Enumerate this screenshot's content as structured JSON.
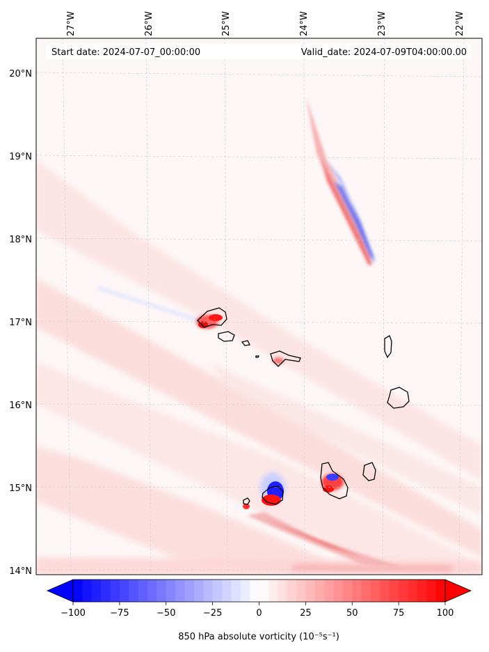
{
  "header": {
    "start_date": "Start date: 2024-07-07_00:00:00",
    "valid_date": "Valid_date: 2024-07-09T04:00:00.00"
  },
  "map": {
    "lon_labels": [
      "27°W",
      "26°W",
      "25°W",
      "24°W",
      "23°W",
      "22°W"
    ],
    "lat_labels": [
      "20°N",
      "19°N",
      "18°N",
      "17°N",
      "16°N",
      "15°N",
      "14°N"
    ]
  },
  "colorbar": {
    "ticks": [
      "−100",
      "−75",
      "−50",
      "−25",
      "0",
      "25",
      "50",
      "75",
      "100"
    ],
    "min": -100,
    "max": 100,
    "levels": 40,
    "neg_color": "#0000ff",
    "pos_color": "#ff0000",
    "label": "850 hPa absolute vorticity (10⁻⁵s⁻¹)"
  }
}
